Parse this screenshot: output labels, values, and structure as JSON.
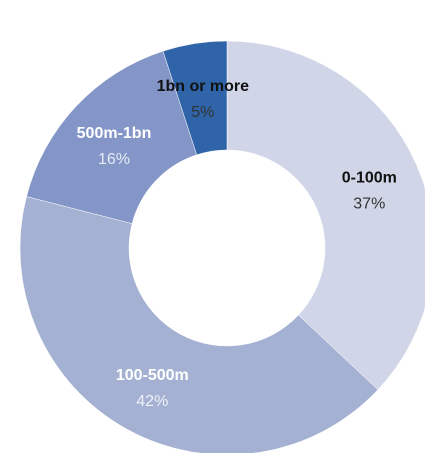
{
  "chart_data": {
    "type": "pie",
    "variant": "donut",
    "title": "",
    "slices": [
      {
        "label": "0-100m",
        "value": 37,
        "value_text": "37%",
        "color": "#d0d5e8",
        "label_color": "#111111",
        "value_color": "#333333"
      },
      {
        "label": "100-500m",
        "value": 42,
        "value_text": "42%",
        "color": "#a4b1d2",
        "label_color": "#ffffff",
        "value_color": "#eef1f8"
      },
      {
        "label": "500m-1bn",
        "value": 16,
        "value_text": "16%",
        "color": "#8496c7",
        "label_color": "#ffffff",
        "value_color": "#e6ebf5"
      },
      {
        "label": "1bn or more",
        "value": 5,
        "value_text": "5%",
        "color": "#2f64a8",
        "label_color": "#111111",
        "value_color": "#333333"
      }
    ],
    "start_angle_deg": 0,
    "direction": "clockwise",
    "legend": "none",
    "callout": {
      "slice": "1bn or more",
      "placement": "outside-top-left"
    }
  }
}
